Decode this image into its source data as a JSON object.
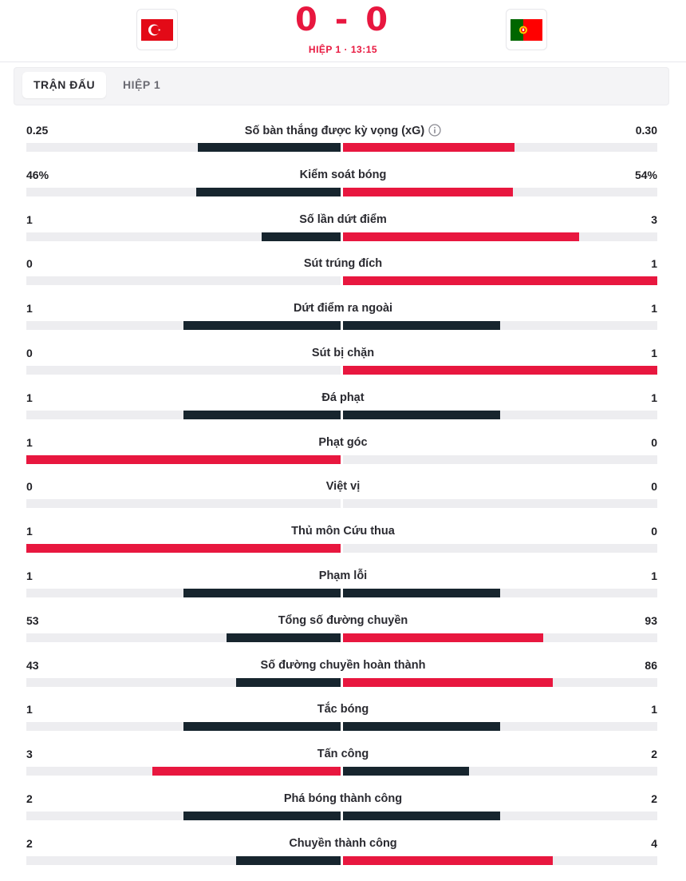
{
  "match": {
    "home_team": "Turkey",
    "away_team": "Portugal",
    "score": "0 - 0",
    "period_label": "HIỆP 1 · 13:15"
  },
  "tabs": [
    {
      "label": "TRẬN ĐẤU",
      "active": true
    },
    {
      "label": "HIỆP 1",
      "active": false
    }
  ],
  "colors": {
    "accent": "#e8173f",
    "dark": "#17252e",
    "track": "#ededf0"
  },
  "stats": [
    {
      "label": "Số bàn thắng được kỳ vọng (xG)",
      "home": "0.25",
      "away": "0.30",
      "home_num": 0.25,
      "away_num": 0.3,
      "info": true
    },
    {
      "label": "Kiểm soát bóng",
      "home": "46%",
      "away": "54%",
      "home_num": 46,
      "away_num": 54
    },
    {
      "label": "Số lần dứt điểm",
      "home": "1",
      "away": "3",
      "home_num": 1,
      "away_num": 3
    },
    {
      "label": "Sút trúng đích",
      "home": "0",
      "away": "1",
      "home_num": 0,
      "away_num": 1
    },
    {
      "label": "Dứt điểm ra ngoài",
      "home": "1",
      "away": "1",
      "home_num": 1,
      "away_num": 1
    },
    {
      "label": "Sút bị chặn",
      "home": "0",
      "away": "1",
      "home_num": 0,
      "away_num": 1
    },
    {
      "label": "Đá phạt",
      "home": "1",
      "away": "1",
      "home_num": 1,
      "away_num": 1
    },
    {
      "label": "Phạt góc",
      "home": "1",
      "away": "0",
      "home_num": 1,
      "away_num": 0
    },
    {
      "label": "Việt vị",
      "home": "0",
      "away": "0",
      "home_num": 0,
      "away_num": 0
    },
    {
      "label": "Thủ môn Cứu thua",
      "home": "1",
      "away": "0",
      "home_num": 1,
      "away_num": 0
    },
    {
      "label": "Phạm lỗi",
      "home": "1",
      "away": "1",
      "home_num": 1,
      "away_num": 1
    },
    {
      "label": "Tổng số đường chuyền",
      "home": "53",
      "away": "93",
      "home_num": 53,
      "away_num": 93
    },
    {
      "label": "Số đường chuyền hoàn thành",
      "home": "43",
      "away": "86",
      "home_num": 43,
      "away_num": 86
    },
    {
      "label": "Tắc bóng",
      "home": "1",
      "away": "1",
      "home_num": 1,
      "away_num": 1
    },
    {
      "label": "Tấn công",
      "home": "3",
      "away": "2",
      "home_num": 3,
      "away_num": 2
    },
    {
      "label": "Phá bóng thành công",
      "home": "2",
      "away": "2",
      "home_num": 2,
      "away_num": 2
    },
    {
      "label": "Chuyền thành công",
      "home": "2",
      "away": "4",
      "home_num": 2,
      "away_num": 4
    }
  ]
}
